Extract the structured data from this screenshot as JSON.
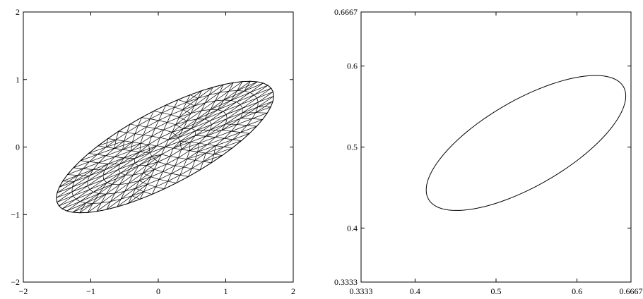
{
  "chart_data": [
    {
      "type": "mesh",
      "title": "",
      "xlabel": "",
      "ylabel": "",
      "xlim": [
        -2,
        2
      ],
      "ylim": [
        -2,
        2
      ],
      "grid": false,
      "x_ticks": [
        {
          "value": -2,
          "label": "−2"
        },
        {
          "value": -1,
          "label": "−1"
        },
        {
          "value": 0,
          "label": "0"
        },
        {
          "value": 1,
          "label": "1"
        },
        {
          "value": 2,
          "label": "2"
        }
      ],
      "y_ticks": [
        {
          "value": -2,
          "label": "−2"
        },
        {
          "value": -1,
          "label": "−1"
        },
        {
          "value": 0,
          "label": "0"
        },
        {
          "value": 1,
          "label": "1"
        },
        {
          "value": 2,
          "label": "2"
        }
      ],
      "shape": {
        "kind": "ellipse-triangulated-mesh",
        "center": [
          0.1,
          0.0
        ],
        "semi_axes": [
          1.8,
          0.55
        ],
        "rotation_deg": 28,
        "mesh_rings": 7,
        "mesh_outer_segments": 56
      }
    },
    {
      "type": "line",
      "title": "",
      "xlabel": "",
      "ylabel": "",
      "xlim": [
        0.3333,
        0.6667
      ],
      "ylim": [
        0.3333,
        0.6667
      ],
      "grid": false,
      "x_ticks": [
        {
          "value": 0.3333,
          "label": "0.3333"
        },
        {
          "value": 0.4,
          "label": "0.4"
        },
        {
          "value": 0.5,
          "label": "0.5"
        },
        {
          "value": 0.6,
          "label": "0.6"
        },
        {
          "value": 0.6667,
          "label": "0.6667"
        }
      ],
      "y_ticks": [
        {
          "value": 0.3333,
          "label": "0.3333"
        },
        {
          "value": 0.4,
          "label": "0.4"
        },
        {
          "value": 0.5,
          "label": "0.5"
        },
        {
          "value": 0.6,
          "label": "0.6"
        },
        {
          "value": 0.6667,
          "label": "0.6667"
        }
      ],
      "shape": {
        "kind": "ellipse-outline",
        "center": [
          0.537,
          0.505
        ],
        "semi_axes": [
          0.139,
          0.053
        ],
        "rotation_deg": 30,
        "segments": 120
      }
    }
  ]
}
